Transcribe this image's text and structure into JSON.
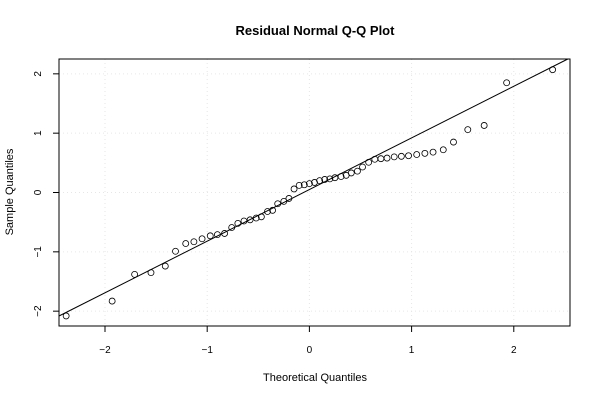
{
  "chart_data": {
    "type": "scatter",
    "title": "Residual Normal Q-Q Plot",
    "xlabel": "Theoretical Quantiles",
    "ylabel": "Sample Quantiles",
    "xlim": [
      -2.45,
      2.55
    ],
    "ylim": [
      -2.25,
      2.25
    ],
    "xticks": [
      -2,
      -1,
      0,
      1,
      2
    ],
    "yticks": [
      -2,
      -1,
      0,
      1,
      2
    ],
    "xtick_labels": [
      "−2",
      "−1",
      "0",
      "1",
      "2"
    ],
    "ytick_labels": [
      "−2",
      "−1",
      "0",
      "1",
      "2"
    ],
    "grid": true,
    "reference_line": {
      "slope": 0.87,
      "intercept": 0.05
    },
    "points": [
      {
        "x": -2.38,
        "y": -2.08
      },
      {
        "x": -1.93,
        "y": -1.83
      },
      {
        "x": -1.71,
        "y": -1.38
      },
      {
        "x": -1.55,
        "y": -1.35
      },
      {
        "x": -1.41,
        "y": -1.24
      },
      {
        "x": -1.31,
        "y": -0.99
      },
      {
        "x": -1.21,
        "y": -0.86
      },
      {
        "x": -1.13,
        "y": -0.83
      },
      {
        "x": -1.05,
        "y": -0.78
      },
      {
        "x": -0.97,
        "y": -0.73
      },
      {
        "x": -0.9,
        "y": -0.71
      },
      {
        "x": -0.83,
        "y": -0.69
      },
      {
        "x": -0.76,
        "y": -0.59
      },
      {
        "x": -0.7,
        "y": -0.52
      },
      {
        "x": -0.64,
        "y": -0.48
      },
      {
        "x": -0.58,
        "y": -0.46
      },
      {
        "x": -0.52,
        "y": -0.43
      },
      {
        "x": -0.47,
        "y": -0.41
      },
      {
        "x": -0.41,
        "y": -0.32
      },
      {
        "x": -0.36,
        "y": -0.3
      },
      {
        "x": -0.31,
        "y": -0.19
      },
      {
        "x": -0.25,
        "y": -0.15
      },
      {
        "x": -0.2,
        "y": -0.1
      },
      {
        "x": -0.15,
        "y": 0.06
      },
      {
        "x": -0.1,
        "y": 0.12
      },
      {
        "x": -0.05,
        "y": 0.13
      },
      {
        "x": 0.0,
        "y": 0.15
      },
      {
        "x": 0.05,
        "y": 0.17
      },
      {
        "x": 0.1,
        "y": 0.2
      },
      {
        "x": 0.15,
        "y": 0.22
      },
      {
        "x": 0.2,
        "y": 0.23
      },
      {
        "x": 0.25,
        "y": 0.25
      },
      {
        "x": 0.31,
        "y": 0.27
      },
      {
        "x": 0.36,
        "y": 0.29
      },
      {
        "x": 0.41,
        "y": 0.33
      },
      {
        "x": 0.47,
        "y": 0.36
      },
      {
        "x": 0.52,
        "y": 0.43
      },
      {
        "x": 0.58,
        "y": 0.51
      },
      {
        "x": 0.64,
        "y": 0.56
      },
      {
        "x": 0.7,
        "y": 0.57
      },
      {
        "x": 0.76,
        "y": 0.58
      },
      {
        "x": 0.83,
        "y": 0.6
      },
      {
        "x": 0.9,
        "y": 0.61
      },
      {
        "x": 0.97,
        "y": 0.62
      },
      {
        "x": 1.05,
        "y": 0.64
      },
      {
        "x": 1.13,
        "y": 0.66
      },
      {
        "x": 1.21,
        "y": 0.68
      },
      {
        "x": 1.31,
        "y": 0.72
      },
      {
        "x": 1.41,
        "y": 0.85
      },
      {
        "x": 1.55,
        "y": 1.06
      },
      {
        "x": 1.71,
        "y": 1.13
      },
      {
        "x": 1.93,
        "y": 1.85
      },
      {
        "x": 2.38,
        "y": 2.07
      }
    ]
  },
  "colors": {
    "background": "#ffffff",
    "foreground": "#000000",
    "grid": "#e6e6e6"
  }
}
